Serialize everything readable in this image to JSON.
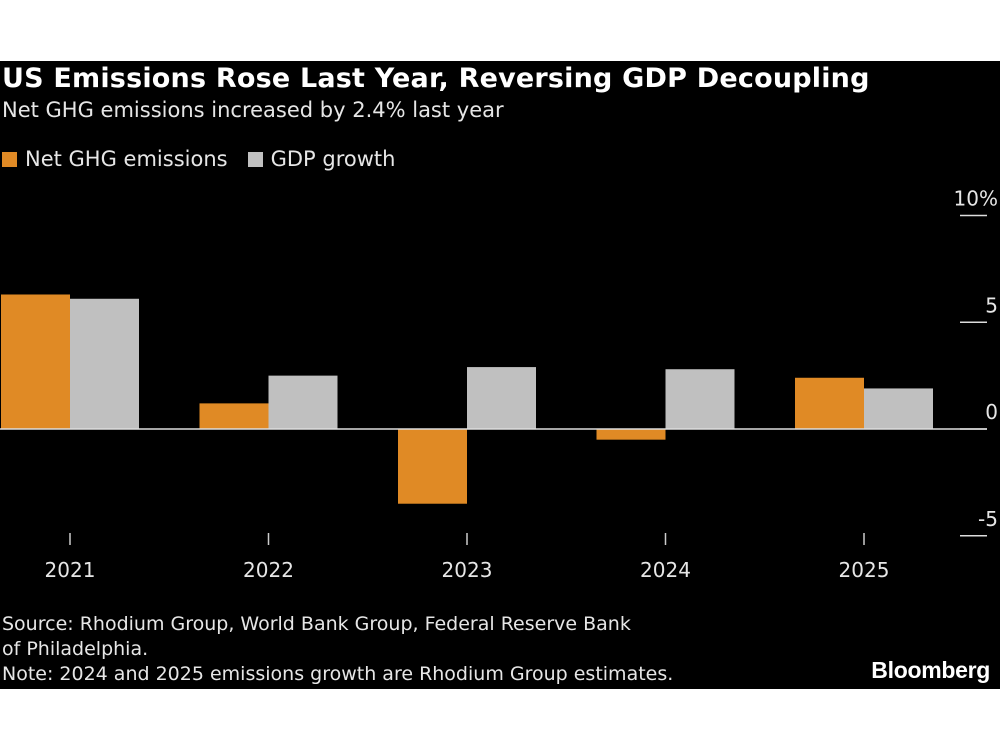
{
  "colors": {
    "emissions": "#e08a25",
    "gdp": "#c0c0c0",
    "background": "#000000"
  },
  "logo": "Bloomberg",
  "chart_data": {
    "type": "bar",
    "title": "US Emissions Rose Last Year, Reversing GDP Decoupling",
    "subtitle": "Net GHG emissions increased by 2.4% last year",
    "categories": [
      "2021",
      "2022",
      "2023",
      "2024",
      "2025"
    ],
    "series": [
      {
        "name": "Net GHG emissions",
        "color": "#e08a25",
        "values": [
          6.3,
          1.2,
          -3.5,
          -0.5,
          2.4
        ]
      },
      {
        "name": "GDP growth",
        "color": "#c0c0c0",
        "values": [
          6.1,
          2.5,
          2.9,
          2.8,
          1.9
        ]
      }
    ],
    "ylim": [
      -5,
      10
    ],
    "yticks": [
      10,
      5,
      0,
      -5
    ],
    "ytick_labels": [
      "10%",
      "5",
      "0",
      "-5"
    ],
    "legend_position": "top-left",
    "grid": false,
    "xlabel": "",
    "ylabel": ""
  },
  "footer": {
    "source_line1": "Source: Rhodium Group, World Bank Group, Federal Reserve Bank",
    "source_line2": "of Philadelphia.",
    "note": "Note: 2024 and 2025 emissions growth are Rhodium Group estimates."
  }
}
